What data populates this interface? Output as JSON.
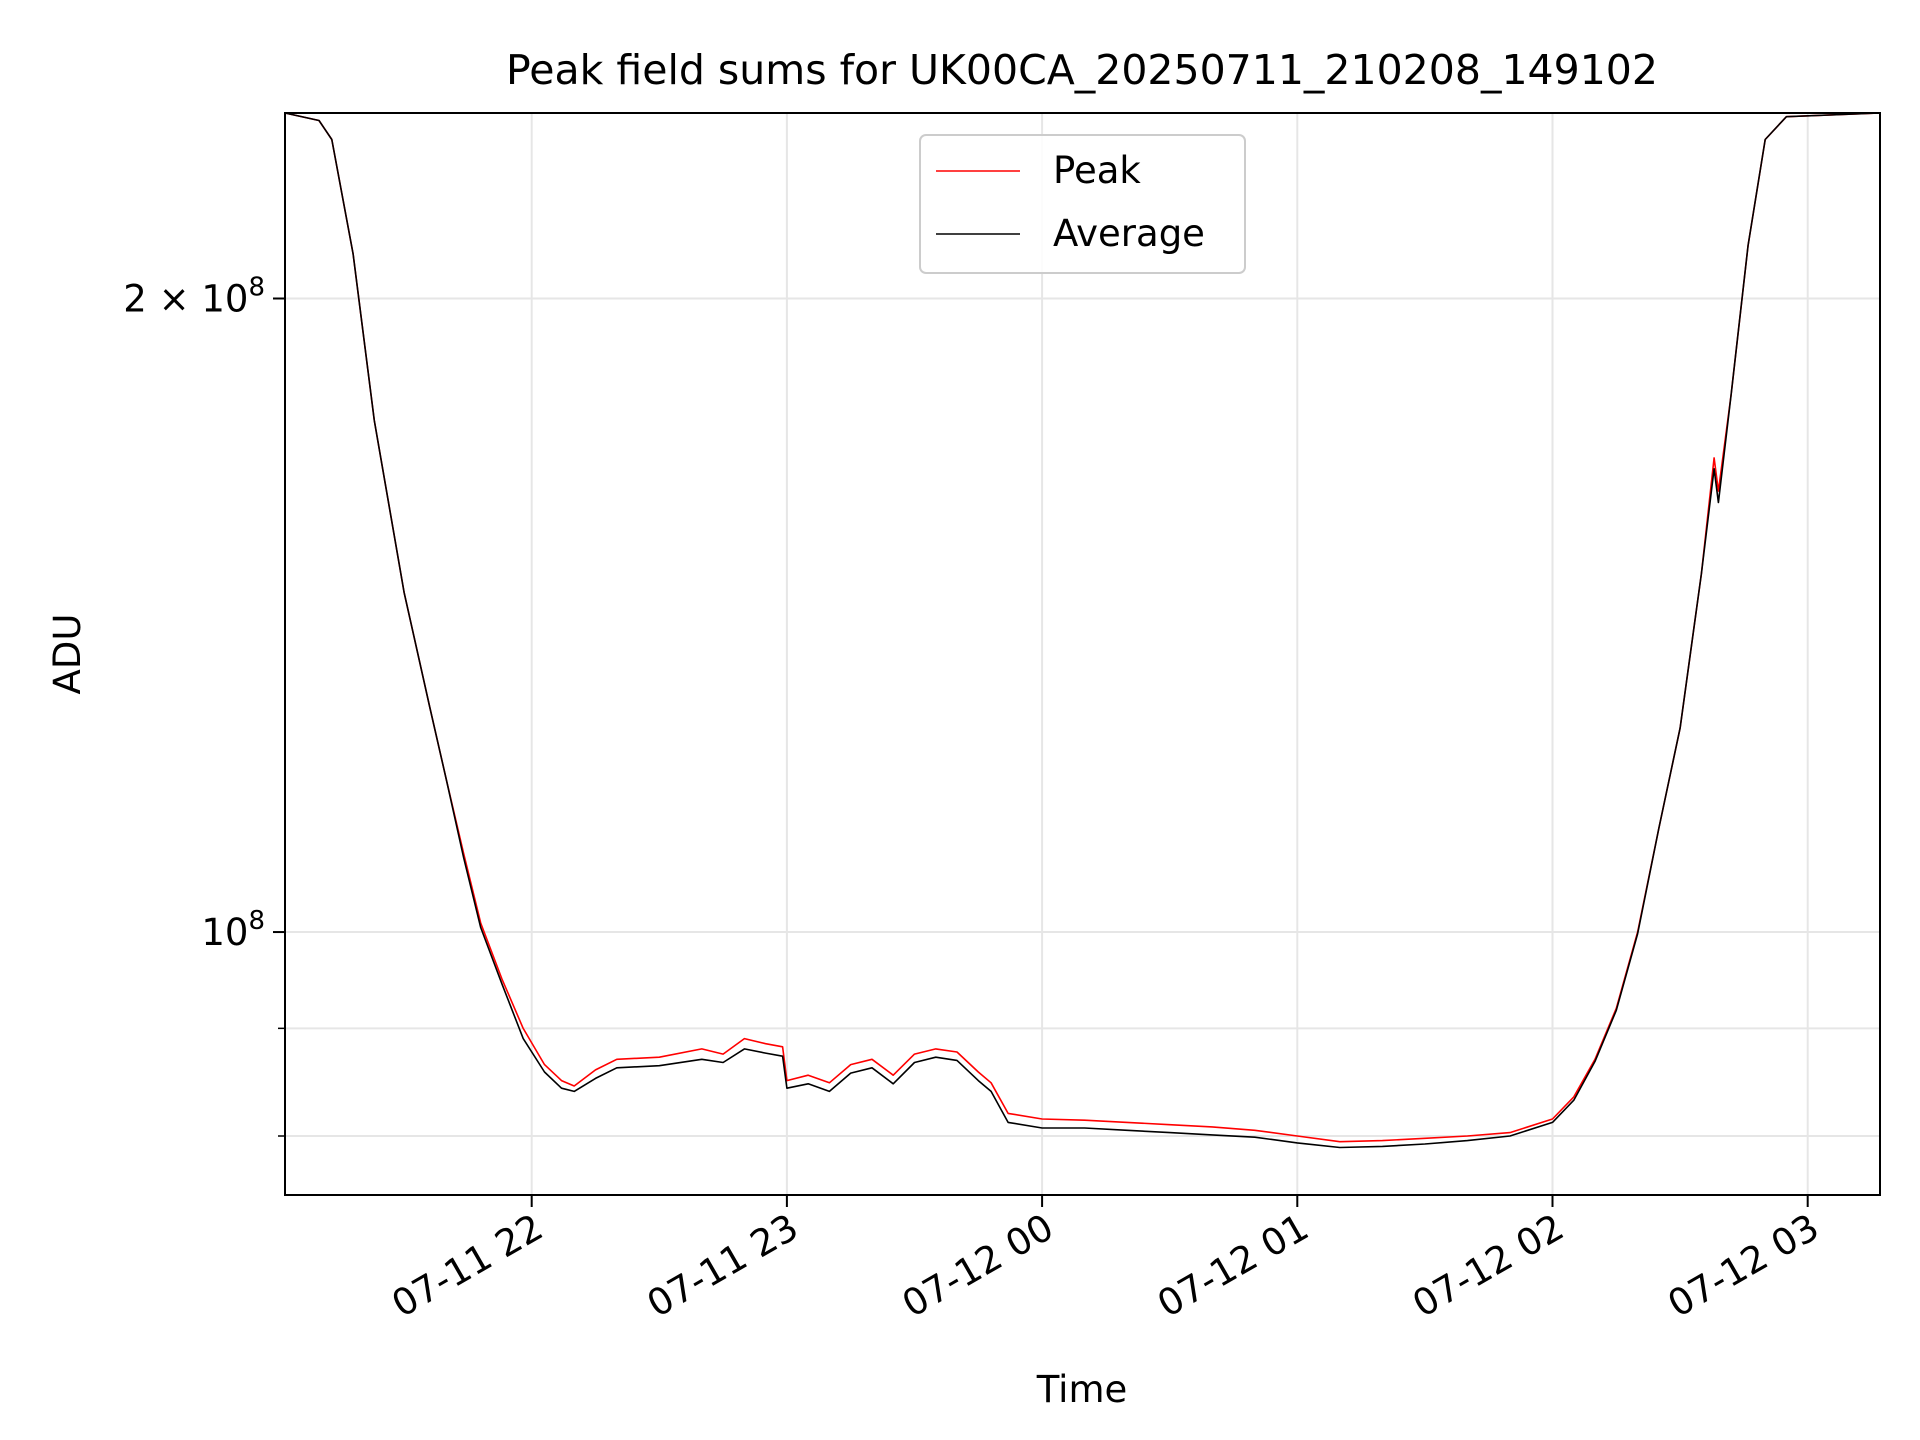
{
  "chart_data": {
    "type": "line",
    "title": "Peak field sums for UK00CA_20250711_210208_149102",
    "xlabel": "Time",
    "ylabel": "ADU",
    "y_scale": "log",
    "grid": true,
    "legend_position": "top-center",
    "xlim": [
      "2025-07-11 21:02",
      "2025-07-12 03:17"
    ],
    "ylim": [
      75000000,
      245000000
    ],
    "x_ticks": [
      {
        "value": "2025-07-11 22:00",
        "label": "07-11 22"
      },
      {
        "value": "2025-07-11 23:00",
        "label": "07-11 23"
      },
      {
        "value": "2025-07-12 00:00",
        "label": "07-12 00"
      },
      {
        "value": "2025-07-12 01:00",
        "label": "07-12 01"
      },
      {
        "value": "2025-07-12 02:00",
        "label": "07-12 02"
      },
      {
        "value": "2025-07-12 03:00",
        "label": "07-12 03"
      }
    ],
    "y_ticks": [
      {
        "value": 200000000,
        "base": "2 × 10",
        "exp": "8"
      },
      {
        "value": 100000000,
        "base": "10",
        "exp": "8"
      }
    ],
    "y_minor_ticks": [
      90000000,
      80000000
    ],
    "series": [
      {
        "name": "Peak",
        "color": "#ff0000",
        "points": [
          [
            "2025-07-11 21:02",
            245000000
          ],
          [
            "2025-07-11 21:10",
            243000000
          ],
          [
            "2025-07-11 21:13",
            238000000
          ],
          [
            "2025-07-11 21:18",
            210000000
          ],
          [
            "2025-07-11 21:23",
            175000000
          ],
          [
            "2025-07-11 21:30",
            145000000
          ],
          [
            "2025-07-11 21:36",
            128000000
          ],
          [
            "2025-07-11 21:40",
            118000000
          ],
          [
            "2025-07-11 21:44",
            109000000
          ],
          [
            "2025-07-11 21:48",
            101000000
          ],
          [
            "2025-07-11 21:53",
            95000000
          ],
          [
            "2025-07-11 21:58",
            90000000
          ],
          [
            "2025-07-11 22:03",
            86500000
          ],
          [
            "2025-07-11 22:07",
            85000000
          ],
          [
            "2025-07-11 22:10",
            84500000
          ],
          [
            "2025-07-11 22:15",
            86000000
          ],
          [
            "2025-07-11 22:20",
            87000000
          ],
          [
            "2025-07-11 22:30",
            87200000
          ],
          [
            "2025-07-11 22:40",
            88000000
          ],
          [
            "2025-07-11 22:45",
            87500000
          ],
          [
            "2025-07-11 22:50",
            89000000
          ],
          [
            "2025-07-11 22:55",
            88500000
          ],
          [
            "2025-07-11 22:59",
            88200000
          ],
          [
            "2025-07-11 23:00",
            85000000
          ],
          [
            "2025-07-11 23:05",
            85500000
          ],
          [
            "2025-07-11 23:10",
            84800000
          ],
          [
            "2025-07-11 23:15",
            86500000
          ],
          [
            "2025-07-11 23:20",
            87000000
          ],
          [
            "2025-07-11 23:25",
            85500000
          ],
          [
            "2025-07-11 23:30",
            87500000
          ],
          [
            "2025-07-11 23:35",
            88000000
          ],
          [
            "2025-07-11 23:40",
            87700000
          ],
          [
            "2025-07-11 23:45",
            85800000
          ],
          [
            "2025-07-11 23:48",
            84800000
          ],
          [
            "2025-07-11 23:52",
            82000000
          ],
          [
            "2025-07-12 00:00",
            81500000
          ],
          [
            "2025-07-12 00:10",
            81400000
          ],
          [
            "2025-07-12 00:20",
            81200000
          ],
          [
            "2025-07-12 00:30",
            81000000
          ],
          [
            "2025-07-12 00:40",
            80800000
          ],
          [
            "2025-07-12 00:50",
            80500000
          ],
          [
            "2025-07-12 01:00",
            80000000
          ],
          [
            "2025-07-12 01:10",
            79500000
          ],
          [
            "2025-07-12 01:20",
            79600000
          ],
          [
            "2025-07-12 01:30",
            79800000
          ],
          [
            "2025-07-12 01:40",
            80000000
          ],
          [
            "2025-07-12 01:50",
            80300000
          ],
          [
            "2025-07-12 02:00",
            81500000
          ],
          [
            "2025-07-12 02:05",
            83500000
          ],
          [
            "2025-07-12 02:10",
            87000000
          ],
          [
            "2025-07-12 02:15",
            92000000
          ],
          [
            "2025-07-12 02:20",
            100000000
          ],
          [
            "2025-07-12 02:25",
            112000000
          ],
          [
            "2025-07-12 02:30",
            125000000
          ],
          [
            "2025-07-12 02:35",
            148000000
          ],
          [
            "2025-07-12 02:38",
            168000000
          ],
          [
            "2025-07-12 02:39",
            162000000
          ],
          [
            "2025-07-12 02:42",
            180000000
          ],
          [
            "2025-07-12 02:46",
            212000000
          ],
          [
            "2025-07-12 02:50",
            238000000
          ],
          [
            "2025-07-12 02:55",
            244000000
          ],
          [
            "2025-07-12 03:17",
            245000000
          ]
        ]
      },
      {
        "name": "Average",
        "color": "#000000",
        "points": [
          [
            "2025-07-11 21:02",
            245000000
          ],
          [
            "2025-07-11 21:10",
            243000000
          ],
          [
            "2025-07-11 21:13",
            238000000
          ],
          [
            "2025-07-11 21:18",
            210000000
          ],
          [
            "2025-07-11 21:23",
            175000000
          ],
          [
            "2025-07-11 21:30",
            145000000
          ],
          [
            "2025-07-11 21:36",
            128000000
          ],
          [
            "2025-07-11 21:40",
            118000000
          ],
          [
            "2025-07-11 21:44",
            108500000
          ],
          [
            "2025-07-11 21:48",
            100500000
          ],
          [
            "2025-07-11 21:53",
            94500000
          ],
          [
            "2025-07-11 21:58",
            89000000
          ],
          [
            "2025-07-11 22:03",
            85800000
          ],
          [
            "2025-07-11 22:07",
            84300000
          ],
          [
            "2025-07-11 22:10",
            84000000
          ],
          [
            "2025-07-11 22:15",
            85200000
          ],
          [
            "2025-07-11 22:20",
            86200000
          ],
          [
            "2025-07-11 22:30",
            86400000
          ],
          [
            "2025-07-11 22:40",
            87000000
          ],
          [
            "2025-07-11 22:45",
            86700000
          ],
          [
            "2025-07-11 22:50",
            88000000
          ],
          [
            "2025-07-11 22:55",
            87600000
          ],
          [
            "2025-07-11 22:59",
            87300000
          ],
          [
            "2025-07-11 23:00",
            84300000
          ],
          [
            "2025-07-11 23:05",
            84700000
          ],
          [
            "2025-07-11 23:10",
            84000000
          ],
          [
            "2025-07-11 23:15",
            85700000
          ],
          [
            "2025-07-11 23:20",
            86200000
          ],
          [
            "2025-07-11 23:25",
            84700000
          ],
          [
            "2025-07-11 23:30",
            86700000
          ],
          [
            "2025-07-11 23:35",
            87200000
          ],
          [
            "2025-07-11 23:40",
            86900000
          ],
          [
            "2025-07-11 23:45",
            85000000
          ],
          [
            "2025-07-11 23:48",
            84000000
          ],
          [
            "2025-07-11 23:52",
            81200000
          ],
          [
            "2025-07-12 00:00",
            80700000
          ],
          [
            "2025-07-12 00:10",
            80700000
          ],
          [
            "2025-07-12 00:20",
            80500000
          ],
          [
            "2025-07-12 00:30",
            80300000
          ],
          [
            "2025-07-12 00:40",
            80100000
          ],
          [
            "2025-07-12 00:50",
            79900000
          ],
          [
            "2025-07-12 01:00",
            79400000
          ],
          [
            "2025-07-12 01:10",
            79000000
          ],
          [
            "2025-07-12 01:20",
            79100000
          ],
          [
            "2025-07-12 01:30",
            79300000
          ],
          [
            "2025-07-12 01:40",
            79600000
          ],
          [
            "2025-07-12 01:50",
            80000000
          ],
          [
            "2025-07-12 02:00",
            81200000
          ],
          [
            "2025-07-12 02:05",
            83200000
          ],
          [
            "2025-07-12 02:10",
            86800000
          ],
          [
            "2025-07-12 02:15",
            91800000
          ],
          [
            "2025-07-12 02:20",
            99800000
          ],
          [
            "2025-07-12 02:25",
            112000000
          ],
          [
            "2025-07-12 02:30",
            125000000
          ],
          [
            "2025-07-12 02:35",
            148000000
          ],
          [
            "2025-07-12 02:38",
            166000000
          ],
          [
            "2025-07-12 02:39",
            160000000
          ],
          [
            "2025-07-12 02:42",
            180000000
          ],
          [
            "2025-07-12 02:46",
            212000000
          ],
          [
            "2025-07-12 02:50",
            238000000
          ],
          [
            "2025-07-12 02:55",
            244000000
          ],
          [
            "2025-07-12 03:17",
            245000000
          ]
        ]
      }
    ]
  }
}
